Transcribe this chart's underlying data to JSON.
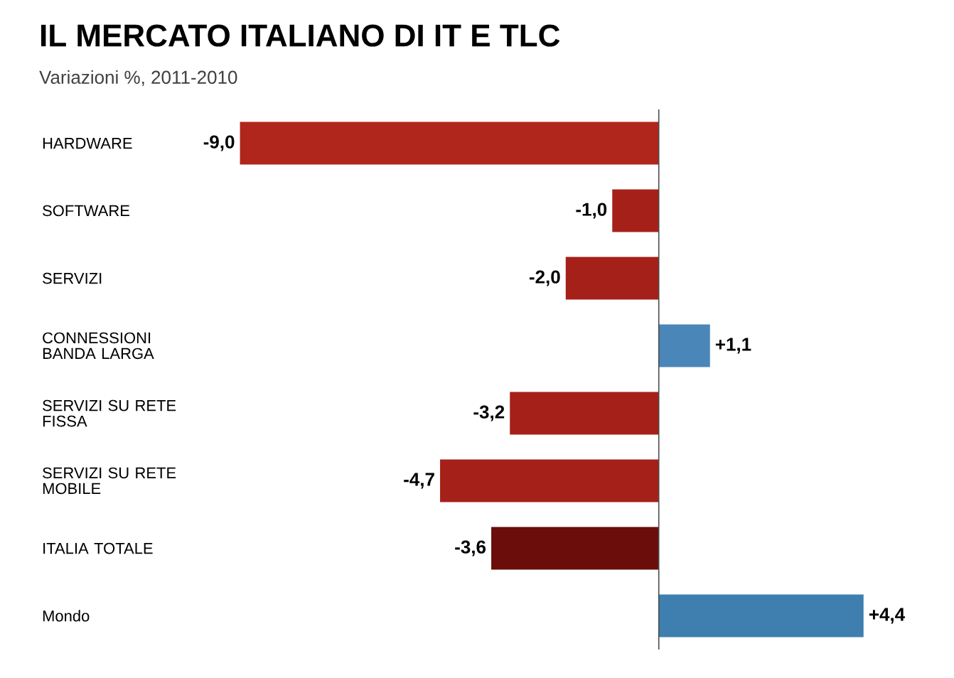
{
  "chart_data": {
    "type": "bar",
    "orientation": "horizontal",
    "title": "IL MERCATO ITALIANO DI IT E TLC",
    "subtitle": "Variazioni %, 2011-2010",
    "categories": [
      "HARDWARE",
      "SOFTWARE",
      "SERVIZI",
      "CONNESSIONI BANDA LARGA",
      "SERVIZI SU RETE FISSA",
      "SERVIZI SU RETE MOBILE",
      "ITALIA TOTALE",
      "Mondo"
    ],
    "values": [
      -9.0,
      -1.0,
      -2.0,
      1.1,
      -3.2,
      -4.7,
      -3.6,
      4.4
    ],
    "value_labels": [
      "-9,0",
      "-1,0",
      "-2,0",
      "+1,1",
      "-3,2",
      "-4,7",
      "-3,6",
      "+4,4"
    ],
    "colors": [
      "#b0251c",
      "#a52019",
      "#a52019",
      "#4a86b8",
      "#a52019",
      "#a52019",
      "#6b0d0a",
      "#3f7fb0"
    ]
  }
}
